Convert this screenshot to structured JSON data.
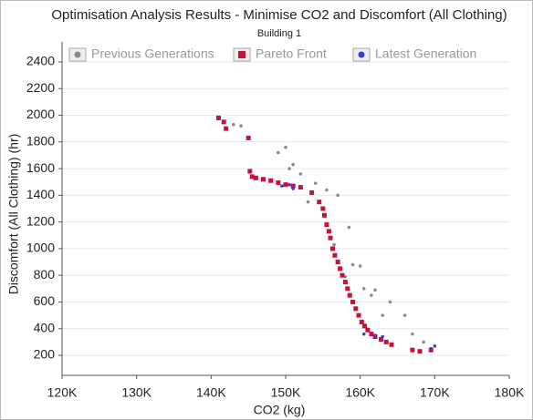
{
  "chart_data": {
    "type": "scatter",
    "title": "Optimisation Analysis Results - Minimise CO2 and Discomfort (All Clothing)",
    "subtitle": "Building 1",
    "x_label": "CO2 (kg)",
    "y_label": "Discomfort (All Clothing) (hr)",
    "xlim": [
      120000,
      180000
    ],
    "xticks": [
      {
        "value": 120000,
        "label": "120K"
      },
      {
        "value": 130000,
        "label": "130K"
      },
      {
        "value": 140000,
        "label": "140K"
      },
      {
        "value": 150000,
        "label": "150K"
      },
      {
        "value": 160000,
        "label": "160K"
      },
      {
        "value": 170000,
        "label": "170K"
      },
      {
        "value": 180000,
        "label": "180K"
      }
    ],
    "ylim": [
      50,
      2550
    ],
    "yticks": [
      200,
      400,
      600,
      800,
      1000,
      1200,
      1400,
      1600,
      1800,
      2000,
      2200,
      2400
    ],
    "grid": true,
    "legend": "top",
    "series": [
      {
        "name": "Previous Generations",
        "color": "#8c8c8c",
        "marker": "circle",
        "x": [
          143000,
          144000,
          149000,
          150000,
          151000,
          152000,
          150500,
          154000,
          155500,
          157000,
          158500,
          159000,
          160000,
          160500,
          162000,
          163000,
          164000,
          166000,
          167000,
          168500,
          153000,
          156500,
          161500,
          158000
        ],
        "y": [
          1930,
          1920,
          1720,
          1760,
          1630,
          1560,
          1600,
          1490,
          1440,
          1400,
          1160,
          880,
          870,
          700,
          690,
          500,
          600,
          500,
          360,
          300,
          1350,
          1030,
          650,
          790
        ]
      },
      {
        "name": "Pareto Front",
        "color": "#c8103c",
        "marker": "square",
        "x": [
          141000,
          141700,
          142000,
          145000,
          145200,
          145500,
          146000,
          147000,
          148000,
          149000,
          150000,
          151000,
          152000,
          153500,
          154500,
          155000,
          155200,
          155500,
          155800,
          156000,
          156300,
          156600,
          157000,
          157300,
          157600,
          158000,
          158300,
          158600,
          159000,
          159400,
          159800,
          160200,
          160600,
          161000,
          161500,
          162000,
          162800,
          163500,
          164200,
          167000,
          168000,
          169500
        ],
        "y": [
          1980,
          1950,
          1900,
          1830,
          1580,
          1540,
          1530,
          1520,
          1510,
          1495,
          1480,
          1470,
          1460,
          1420,
          1350,
          1300,
          1250,
          1180,
          1130,
          1080,
          1000,
          950,
          900,
          850,
          800,
          750,
          700,
          650,
          600,
          550,
          500,
          450,
          420,
          390,
          360,
          340,
          320,
          300,
          280,
          240,
          230,
          240
        ]
      },
      {
        "name": "Latest Generation",
        "color": "#3c3cdc",
        "marker": "circle",
        "x": [
          149500,
          150500,
          151000,
          160500,
          162000,
          163000,
          170000,
          169500
        ],
        "y": [
          1470,
          1480,
          1450,
          360,
          350,
          340,
          270,
          250
        ]
      }
    ]
  }
}
